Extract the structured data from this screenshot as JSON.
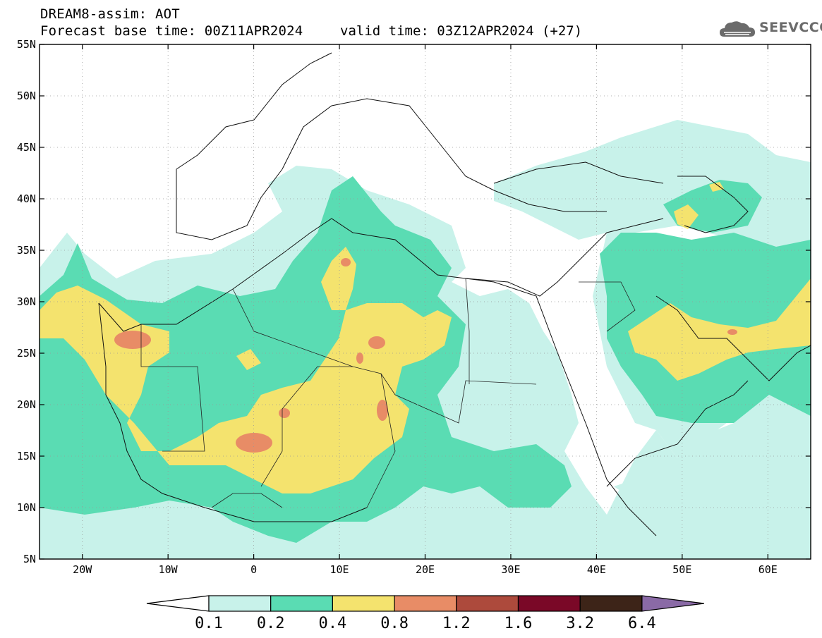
{
  "header": {
    "title": "DREAM8-assim: AOT",
    "base_time": "Forecast base time: 00Z11APR2024",
    "valid_time": "valid time: 03Z12APR2024 (+27)"
  },
  "logo": {
    "icon": "cloud-icon",
    "text": "SEEVCCC"
  },
  "map": {
    "lon_range": [
      -25,
      65
    ],
    "lat_range": [
      5,
      55
    ],
    "lat_labels": [
      "55N",
      "50N",
      "45N",
      "40N",
      "35N",
      "30N",
      "25N",
      "20N",
      "15N",
      "10N",
      "5N"
    ],
    "lat_values": [
      55,
      50,
      45,
      40,
      35,
      30,
      25,
      20,
      15,
      10,
      5
    ],
    "lon_labels": [
      "20W",
      "10W",
      "0",
      "10E",
      "20E",
      "30E",
      "40E",
      "50E",
      "60E"
    ],
    "lon_values": [
      -20,
      -10,
      0,
      10,
      20,
      30,
      40,
      50,
      60
    ]
  },
  "colorbar": {
    "levels": [
      "0.1",
      "0.2",
      "0.4",
      "0.8",
      "1.2",
      "1.6",
      "3.2",
      "6.4"
    ],
    "colors": [
      "#c8f2ea",
      "#5adcb3",
      "#f4e36e",
      "#e88c66",
      "#ad4a3c",
      "#7a0827",
      "#3d2418",
      "#8a6aa6"
    ]
  }
}
